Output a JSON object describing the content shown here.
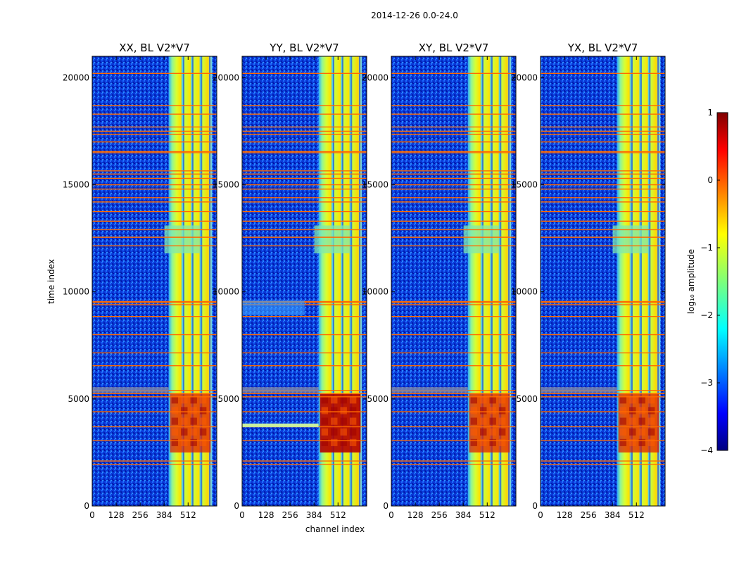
{
  "suptitle": "2014-12-26 0.0-24.0",
  "colors": {
    "background": "#000080",
    "band_low": "#4fdfff",
    "band_mid": "#bfff3f",
    "band_high": "#ffd000",
    "hot": "#c80000",
    "flag_line": "#ff6a00"
  },
  "chart_data": {
    "type": "heatmap",
    "xlabel": "channel index",
    "ylabel": "time index",
    "xlim": [
      0,
      665
    ],
    "ylim": [
      0,
      21000
    ],
    "xticks": [
      "0",
      "128",
      "256",
      "384",
      "512"
    ],
    "yticks": [
      "0",
      "5000",
      "10000",
      "15000",
      "20000"
    ],
    "flagged_rows": [
      1950,
      2100,
      3050,
      3700,
      4400,
      5100,
      5250,
      5400,
      6550,
      7150,
      8000,
      8850,
      9400,
      9500,
      9550,
      12150,
      12550,
      12900,
      13300,
      13750,
      14200,
      14400,
      14800,
      15000,
      15300,
      15500,
      15650,
      16500,
      16550,
      17000,
      17350,
      17500,
      17700,
      18300,
      18700,
      20200
    ],
    "signal_band_channels": [
      408,
      640
    ],
    "panels": [
      {
        "title": "XX, BL V2*V7",
        "corr": "XX"
      },
      {
        "title": "YY, BL V2*V7",
        "corr": "YY"
      },
      {
        "title": "XY, BL V2*V7",
        "corr": "XY"
      },
      {
        "title": "YX, BL V2*V7",
        "corr": "YX"
      }
    ],
    "colorbar": {
      "label": "log₁₀ amplitude",
      "ticks": [
        "1",
        "0",
        "−1",
        "−2",
        "−3",
        "−4"
      ],
      "range": [
        -4,
        1
      ],
      "colormap": "jet"
    }
  }
}
